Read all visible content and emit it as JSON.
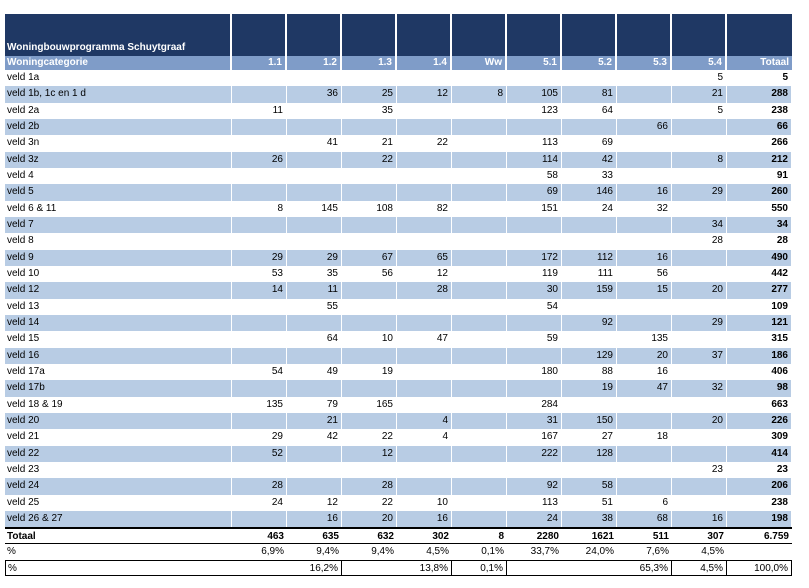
{
  "title": "Woningbouwprogramma Schuytgraaf",
  "headers": [
    "Woningcategorie",
    "1.1",
    "1.2",
    "1.3",
    "1.4",
    "Ww",
    "5.1",
    "5.2",
    "5.3",
    "5.4",
    "Totaal"
  ],
  "rows": [
    [
      "veld 1a",
      "",
      "",
      "",
      "",
      "",
      "",
      "",
      "",
      "5",
      "5"
    ],
    [
      "veld 1b, 1c en 1 d",
      "",
      "36",
      "25",
      "12",
      "8",
      "105",
      "81",
      "",
      "21",
      "288"
    ],
    [
      "veld 2a",
      "11",
      "",
      "35",
      "",
      "",
      "123",
      "64",
      "",
      "5",
      "238"
    ],
    [
      "veld 2b",
      "",
      "",
      "",
      "",
      "",
      "",
      "",
      "66",
      "",
      "66"
    ],
    [
      "veld 3n",
      "",
      "41",
      "21",
      "22",
      "",
      "113",
      "69",
      "",
      "",
      "266"
    ],
    [
      "veld 3z",
      "26",
      "",
      "22",
      "",
      "",
      "114",
      "42",
      "",
      "8",
      "212"
    ],
    [
      "veld 4",
      "",
      "",
      "",
      "",
      "",
      "58",
      "33",
      "",
      "",
      "91"
    ],
    [
      "veld 5",
      "",
      "",
      "",
      "",
      "",
      "69",
      "146",
      "16",
      "29",
      "260"
    ],
    [
      "veld 6 & 11",
      "8",
      "145",
      "108",
      "82",
      "",
      "151",
      "24",
      "32",
      "",
      "550"
    ],
    [
      "veld 7",
      "",
      "",
      "",
      "",
      "",
      "",
      "",
      "",
      "34",
      "34"
    ],
    [
      "veld 8",
      "",
      "",
      "",
      "",
      "",
      "",
      "",
      "",
      "28",
      "28"
    ],
    [
      "veld 9",
      "29",
      "29",
      "67",
      "65",
      "",
      "172",
      "112",
      "16",
      "",
      "490"
    ],
    [
      "veld 10",
      "53",
      "35",
      "56",
      "12",
      "",
      "119",
      "111",
      "56",
      "",
      "442"
    ],
    [
      "veld 12",
      "14",
      "11",
      "",
      "28",
      "",
      "30",
      "159",
      "15",
      "20",
      "277"
    ],
    [
      "veld 13",
      "",
      "55",
      "",
      "",
      "",
      "54",
      "",
      "",
      "",
      "109"
    ],
    [
      "veld 14",
      "",
      "",
      "",
      "",
      "",
      "",
      "92",
      "",
      "29",
      "121"
    ],
    [
      "veld 15",
      "",
      "64",
      "10",
      "47",
      "",
      "59",
      "",
      "135",
      "",
      "315"
    ],
    [
      "veld 16",
      "",
      "",
      "",
      "",
      "",
      "",
      "129",
      "20",
      "37",
      "186"
    ],
    [
      "veld 17a",
      "54",
      "49",
      "19",
      "",
      "",
      "180",
      "88",
      "16",
      "",
      "406"
    ],
    [
      "veld 17b",
      "",
      "",
      "",
      "",
      "",
      "",
      "19",
      "47",
      "32",
      "98"
    ],
    [
      "veld 18 & 19",
      "135",
      "79",
      "165",
      "",
      "",
      "284",
      "",
      "",
      "",
      "663"
    ],
    [
      "veld 20",
      "",
      "21",
      "",
      "4",
      "",
      "31",
      "150",
      "",
      "20",
      "226"
    ],
    [
      "veld 21",
      "29",
      "42",
      "22",
      "4",
      "",
      "167",
      "27",
      "18",
      "",
      "309"
    ],
    [
      "veld 22",
      "52",
      "",
      "12",
      "",
      "",
      "222",
      "128",
      "",
      "",
      "414"
    ],
    [
      "veld 23",
      "",
      "",
      "",
      "",
      "",
      "",
      "",
      "",
      "23",
      "23"
    ],
    [
      "veld 24",
      "28",
      "",
      "28",
      "",
      "",
      "92",
      "58",
      "",
      "",
      "206"
    ],
    [
      "veld 25",
      "24",
      "12",
      "22",
      "10",
      "",
      "113",
      "51",
      "6",
      "",
      "238"
    ],
    [
      "veld 26 & 27",
      "",
      "16",
      "20",
      "16",
      "",
      "24",
      "38",
      "68",
      "16",
      "198"
    ]
  ],
  "total": [
    "Totaal",
    "463",
    "635",
    "632",
    "302",
    "8",
    "2280",
    "1621",
    "511",
    "307",
    "6.759"
  ],
  "pct1": [
    "%",
    "6,9%",
    "9,4%",
    "9,4%",
    "4,5%",
    "0,1%",
    "33,7%",
    "24,0%",
    "7,6%",
    "4,5%",
    ""
  ],
  "pct2": {
    "label": "%",
    "g1": "16,2%",
    "g2": "13,8%",
    "g3": "0,1%",
    "g4": "65,3%",
    "g5": "4,5%",
    "g6": "100,0%"
  }
}
